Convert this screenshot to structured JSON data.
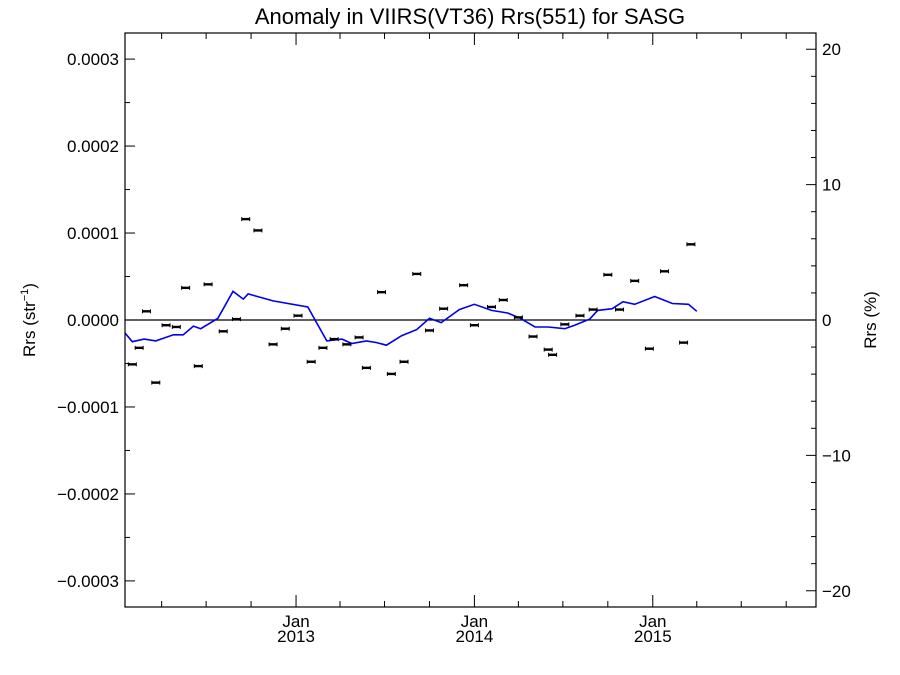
{
  "chart_data": {
    "type": "scatter",
    "title": "Anomaly in VIIRS(VT36) Rrs(551) for SASG",
    "ylabel_left": {
      "base": "Rrs (str",
      "sup": "−1",
      "close": ")"
    },
    "ylabel_right": "Rrs (%)",
    "ylim_left": [
      -0.00033,
      0.00033
    ],
    "ylim_right": [
      -21.2,
      21.2
    ],
    "yticks_left": [
      {
        "value": 0.0003,
        "label": "0.0003"
      },
      {
        "value": 0.0002,
        "label": "0.0002"
      },
      {
        "value": 0.0001,
        "label": "0.0001"
      },
      {
        "value": 0.0,
        "label": "0.0000"
      },
      {
        "value": -0.0001,
        "label": "−0.0001"
      },
      {
        "value": -0.0002,
        "label": "−0.0002"
      },
      {
        "value": -0.0003,
        "label": "−0.0003"
      }
    ],
    "yticks_right": [
      {
        "value": 20,
        "label": "20"
      },
      {
        "value": 10,
        "label": "10"
      },
      {
        "value": 0,
        "label": "0"
      },
      {
        "value": -10,
        "label": "−10"
      },
      {
        "value": -20,
        "label": "−20"
      }
    ],
    "xlim": [
      "2012-01-17",
      "2015-12-01"
    ],
    "xticks": [
      {
        "date": "2013-01-01",
        "month": "Jan",
        "year": "2013"
      },
      {
        "date": "2014-01-01",
        "month": "Jan",
        "year": "2014"
      },
      {
        "date": "2015-01-01",
        "month": "Jan",
        "year": "2015"
      }
    ],
    "xminor_ticks": [
      "2012-04-01",
      "2012-07-01",
      "2012-10-01",
      "2013-04-01",
      "2013-07-01",
      "2013-10-01",
      "2014-04-01",
      "2014-07-01",
      "2014-10-01",
      "2015-04-01",
      "2015-07-01",
      "2015-10-01"
    ],
    "reference_line": 0,
    "points": [
      {
        "x": "2012-02-01",
        "y": -5.1e-05
      },
      {
        "x": "2012-02-15",
        "y": -3.2e-05
      },
      {
        "x": "2012-03-01",
        "y": 1e-05
      },
      {
        "x": "2012-03-20",
        "y": -7.2e-05
      },
      {
        "x": "2012-04-10",
        "y": -6e-06
      },
      {
        "x": "2012-05-01",
        "y": -8e-06
      },
      {
        "x": "2012-05-20",
        "y": 3.7e-05
      },
      {
        "x": "2012-06-15",
        "y": -5.3e-05
      },
      {
        "x": "2012-07-05",
        "y": 4.1e-05
      },
      {
        "x": "2012-08-05",
        "y": -1.3e-05
      },
      {
        "x": "2012-09-01",
        "y": 1e-06
      },
      {
        "x": "2012-09-20",
        "y": 0.000116
      },
      {
        "x": "2012-10-15",
        "y": 0.000103
      },
      {
        "x": "2012-11-15",
        "y": -2.8e-05
      },
      {
        "x": "2012-12-10",
        "y": -1e-05
      },
      {
        "x": "2013-01-05",
        "y": 5e-06
      },
      {
        "x": "2013-02-01",
        "y": -4.8e-05
      },
      {
        "x": "2013-02-25",
        "y": -3.2e-05
      },
      {
        "x": "2013-03-20",
        "y": -2.2e-05
      },
      {
        "x": "2013-04-15",
        "y": -2.8e-05
      },
      {
        "x": "2013-05-10",
        "y": -2e-05
      },
      {
        "x": "2013-05-25",
        "y": -5.5e-05
      },
      {
        "x": "2013-06-25",
        "y": 3.2e-05
      },
      {
        "x": "2013-07-15",
        "y": -6.2e-05
      },
      {
        "x": "2013-08-10",
        "y": -4.8e-05
      },
      {
        "x": "2013-09-05",
        "y": 5.3e-05
      },
      {
        "x": "2013-10-01",
        "y": -1.2e-05
      },
      {
        "x": "2013-10-30",
        "y": 1.3e-05
      },
      {
        "x": "2013-12-10",
        "y": 4e-05
      },
      {
        "x": "2014-01-01",
        "y": -6e-06
      },
      {
        "x": "2014-02-05",
        "y": 1.5e-05
      },
      {
        "x": "2014-03-01",
        "y": 2.3e-05
      },
      {
        "x": "2014-04-01",
        "y": 3e-06
      },
      {
        "x": "2014-05-01",
        "y": -1.9e-05
      },
      {
        "x": "2014-06-01",
        "y": -3.4e-05
      },
      {
        "x": "2014-06-10",
        "y": -4e-05
      },
      {
        "x": "2014-07-05",
        "y": -5e-06
      },
      {
        "x": "2014-08-05",
        "y": 5e-06
      },
      {
        "x": "2014-09-01",
        "y": 1.2e-05
      },
      {
        "x": "2014-10-01",
        "y": 5.2e-05
      },
      {
        "x": "2014-10-25",
        "y": 1.2e-05
      },
      {
        "x": "2014-11-25",
        "y": 4.5e-05
      },
      {
        "x": "2014-12-25",
        "y": -3.3e-05
      },
      {
        "x": "2015-01-25",
        "y": 5.6e-05
      },
      {
        "x": "2015-03-05",
        "y": -2.6e-05
      },
      {
        "x": "2015-03-20",
        "y": 8.7e-05
      }
    ],
    "line_series": {
      "color": "#0000ee",
      "points": [
        {
          "x": "2012-01-17",
          "y": -1.5e-05
        },
        {
          "x": "2012-02-01",
          "y": -2.5e-05
        },
        {
          "x": "2012-02-25",
          "y": -2.2e-05
        },
        {
          "x": "2012-03-20",
          "y": -2.4e-05
        },
        {
          "x": "2012-04-25",
          "y": -1.7e-05
        },
        {
          "x": "2012-05-15",
          "y": -1.7e-05
        },
        {
          "x": "2012-06-05",
          "y": -7e-06
        },
        {
          "x": "2012-06-20",
          "y": -1e-05
        },
        {
          "x": "2012-07-25",
          "y": 2e-06
        },
        {
          "x": "2012-08-25",
          "y": 3.3e-05
        },
        {
          "x": "2012-09-15",
          "y": 2.4e-05
        },
        {
          "x": "2012-09-25",
          "y": 3e-05
        },
        {
          "x": "2012-11-15",
          "y": 2.2e-05
        },
        {
          "x": "2013-01-25",
          "y": 1.5e-05
        },
        {
          "x": "2013-03-05",
          "y": -2.4e-05
        },
        {
          "x": "2013-04-05",
          "y": -2.2e-05
        },
        {
          "x": "2013-04-25",
          "y": -2.7e-05
        },
        {
          "x": "2013-05-25",
          "y": -2.4e-05
        },
        {
          "x": "2013-06-15",
          "y": -2.6e-05
        },
        {
          "x": "2013-07-05",
          "y": -2.9e-05
        },
        {
          "x": "2013-08-05",
          "y": -1.8e-05
        },
        {
          "x": "2013-09-05",
          "y": -1.1e-05
        },
        {
          "x": "2013-10-01",
          "y": 2e-06
        },
        {
          "x": "2013-10-25",
          "y": -3e-06
        },
        {
          "x": "2013-12-01",
          "y": 1.2e-05
        },
        {
          "x": "2014-01-01",
          "y": 1.8e-05
        },
        {
          "x": "2014-02-05",
          "y": 1.1e-05
        },
        {
          "x": "2014-03-10",
          "y": 8e-06
        },
        {
          "x": "2014-04-05",
          "y": 2e-06
        },
        {
          "x": "2014-05-05",
          "y": -8e-06
        },
        {
          "x": "2014-06-01",
          "y": -8e-06
        },
        {
          "x": "2014-07-05",
          "y": -1e-05
        },
        {
          "x": "2014-07-25",
          "y": -6e-06
        },
        {
          "x": "2014-08-25",
          "y": 1e-06
        },
        {
          "x": "2014-09-10",
          "y": 1.1e-05
        },
        {
          "x": "2014-10-10",
          "y": 1.3e-05
        },
        {
          "x": "2014-11-01",
          "y": 2.1e-05
        },
        {
          "x": "2014-11-25",
          "y": 1.8e-05
        },
        {
          "x": "2015-01-05",
          "y": 2.7e-05
        },
        {
          "x": "2015-02-10",
          "y": 1.9e-05
        },
        {
          "x": "2015-03-15",
          "y": 1.8e-05
        },
        {
          "x": "2015-04-01",
          "y": 1e-05
        }
      ]
    }
  }
}
